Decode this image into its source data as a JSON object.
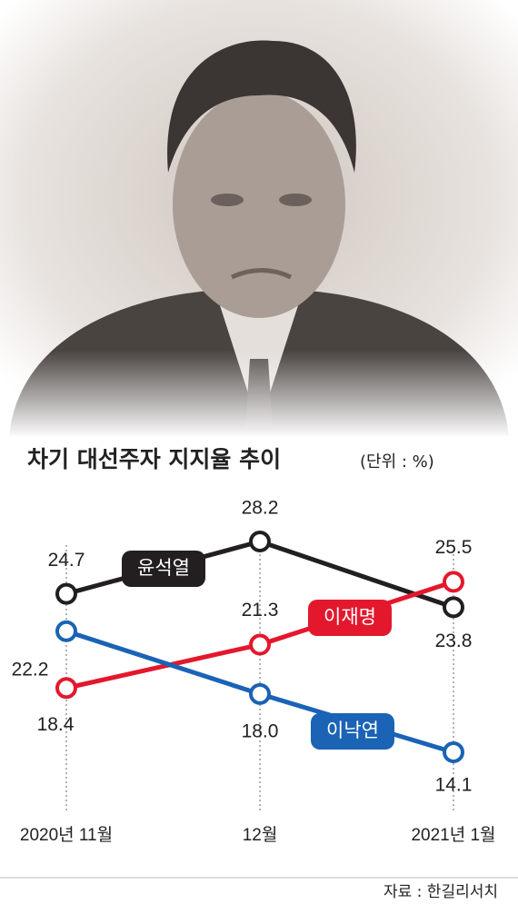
{
  "chart_data": {
    "type": "line",
    "title": "차기 대선주자 지지율 추이",
    "subtitle": "(단위 : %)",
    "source": "자료 : 한길리서치",
    "categories": [
      "2020년 11월",
      "12월",
      "2021년 1월"
    ],
    "series": [
      {
        "name": "윤석열",
        "color": "#231f20",
        "values": [
          24.7,
          28.2,
          23.8
        ]
      },
      {
        "name": "이재명",
        "color": "#e3182d",
        "values": [
          18.4,
          21.3,
          25.5
        ]
      },
      {
        "name": "이낙연",
        "color": "#1a63b5",
        "values": [
          22.2,
          18.0,
          14.1
        ],
        "value_labels": [
          "22.2",
          "18.0",
          "14.1"
        ]
      }
    ]
  }
}
